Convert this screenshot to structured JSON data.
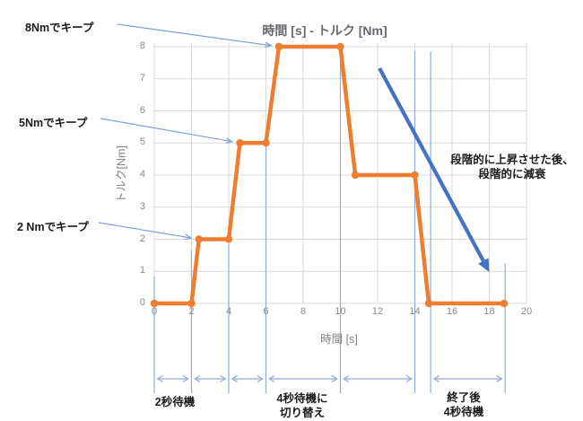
{
  "chart_data": {
    "type": "line",
    "title": "時間 [s] - トルク [Nm]",
    "xlabel": "時間 [s]",
    "ylabel": "トルク[Nm]",
    "xlim": [
      0,
      20
    ],
    "ylim": [
      0,
      8
    ],
    "xticks": [
      0,
      2,
      4,
      6,
      8,
      10,
      12,
      14,
      16,
      18,
      20
    ],
    "yticks": [
      0,
      1,
      2,
      3,
      4,
      5,
      6,
      7,
      8
    ],
    "grid": true,
    "legend": "none",
    "series": [
      {
        "name": "torque-profile",
        "color": "#ED7D31",
        "points": [
          [
            0,
            0
          ],
          [
            2,
            0
          ],
          [
            2.4,
            2
          ],
          [
            4,
            2
          ],
          [
            4.6,
            5
          ],
          [
            6,
            5
          ],
          [
            6.7,
            8
          ],
          [
            10,
            8
          ],
          [
            10.8,
            4
          ],
          [
            14,
            4
          ],
          [
            14.75,
            0
          ],
          [
            18.8,
            0
          ]
        ]
      }
    ],
    "guide_lines": [
      {
        "x": 0,
        "y_top": 0.85
      },
      {
        "x": 2,
        "y_top": 1.65
      },
      {
        "x": 4,
        "y_top": 1.85
      },
      {
        "x": 6,
        "y_top": 5.15
      },
      {
        "x": 10,
        "y_top": 8.0
      },
      {
        "x": 14,
        "y_top": 7.85
      },
      {
        "x": 14.85,
        "y_top": 7.85
      },
      {
        "x": 18.85,
        "y_top": 1.25
      }
    ],
    "span_arrows": [
      [
        0,
        2
      ],
      [
        2,
        4
      ],
      [
        4,
        6
      ],
      [
        6,
        10
      ],
      [
        10,
        14
      ],
      [
        14.85,
        18.85
      ]
    ],
    "trend_arrow": {
      "from": [
        12.1,
        7.33
      ],
      "to": [
        18.0,
        0.98
      ]
    },
    "leader_arrows": [
      {
        "name": "keep8",
        "to": [
          6.7,
          8
        ]
      },
      {
        "name": "keep5",
        "to": [
          4.6,
          5
        ]
      },
      {
        "name": "keep2",
        "to": [
          2.4,
          2
        ]
      }
    ]
  },
  "annotations": {
    "keep8": "8Nmでキープ",
    "keep5": "5Nmでキープ",
    "keep2": "2 Nmでキープ",
    "decay_line1": "段階的に上昇させた後、",
    "decay_line2": "段階的に減衰",
    "wait2": "2秒待機",
    "wait4_line1": "4秒待機に",
    "wait4_line2": "切り替え",
    "end4_line1": "終了後",
    "end4_line2": "4秒待機"
  },
  "colors": {
    "series": "#ED7D31",
    "grid": "#D9D9D9",
    "guide": "#92ABDC",
    "leader": "#7BA0DB",
    "big_arrow": "#4472C4",
    "axis_text": "#85898c",
    "title_text": "#666a6e",
    "annotation_text": "#1a1a1a"
  }
}
